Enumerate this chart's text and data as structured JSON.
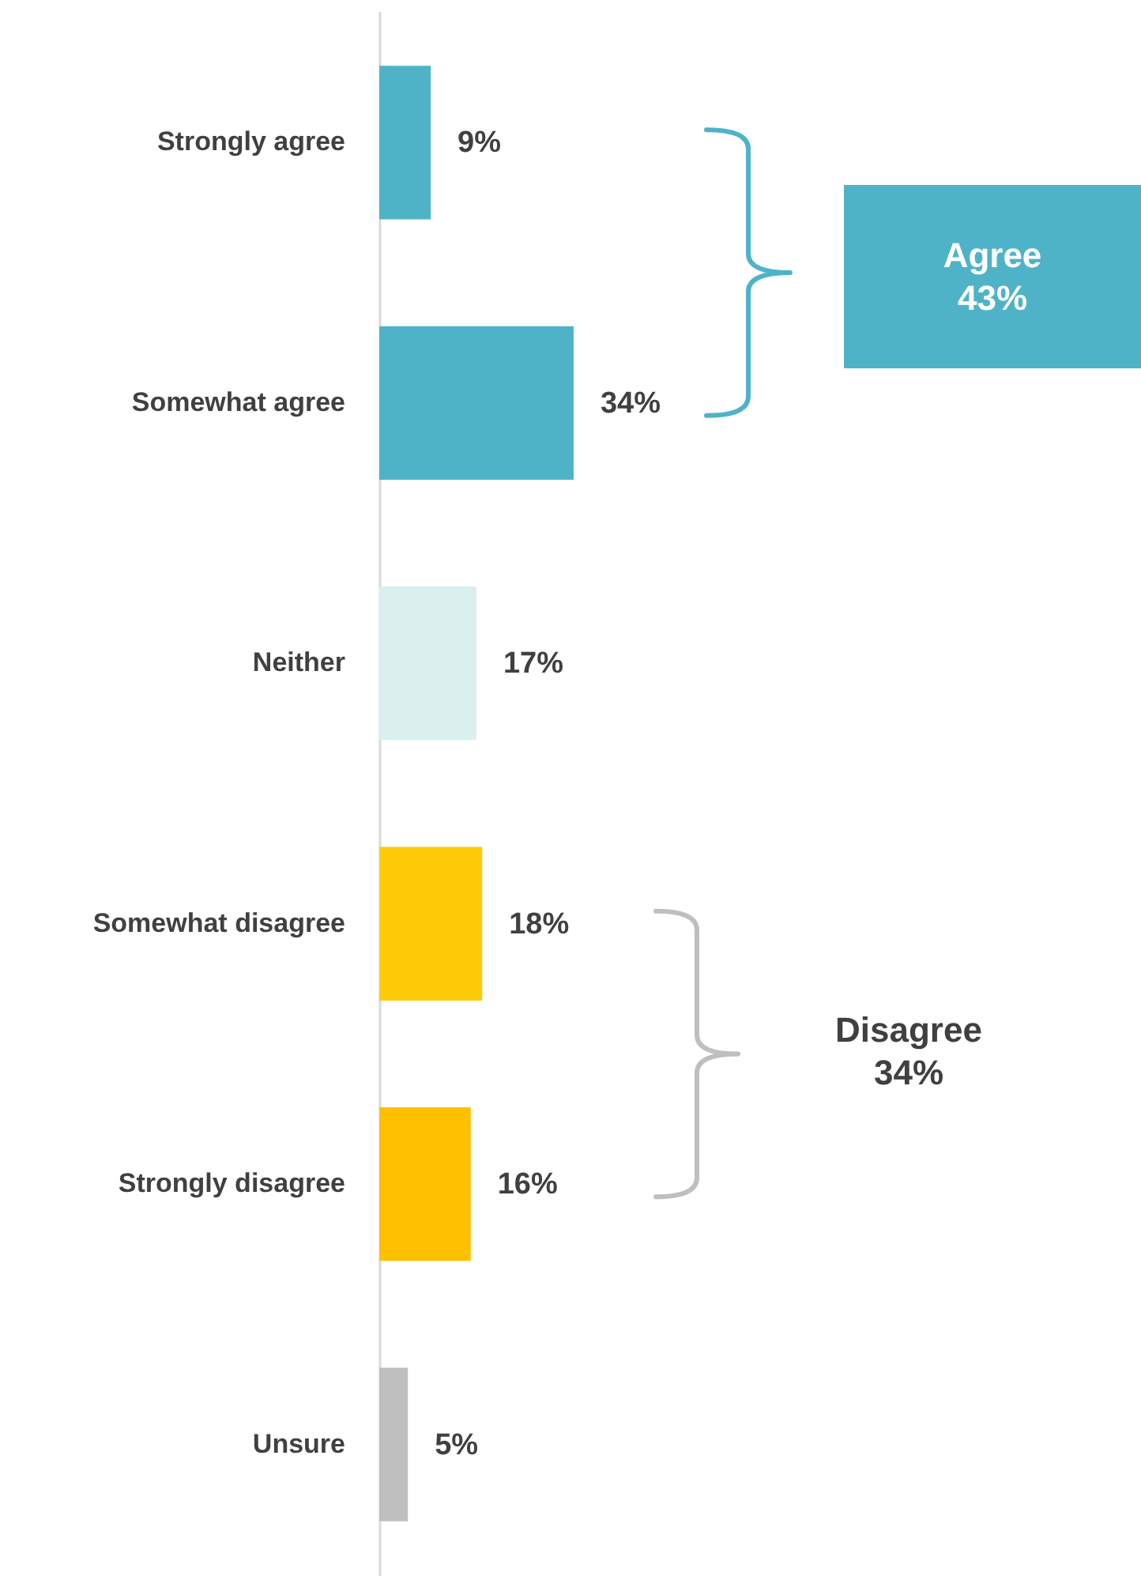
{
  "chart_data": {
    "type": "bar",
    "orientation": "horizontal",
    "categories": [
      "Strongly agree",
      "Somewhat agree",
      "Neither",
      "Somewhat disagree",
      "Strongly disagree",
      "Unsure"
    ],
    "values": [
      9,
      34,
      17,
      18,
      16,
      5
    ],
    "colors": [
      "#4fb3c8",
      "#4fb3c8",
      "#daf0ef",
      "#ffcb08",
      "#ffc000",
      "#bfbfbf"
    ],
    "value_labels": [
      "9%",
      "34%",
      "17%",
      "18%",
      "16%",
      "5%"
    ],
    "annotations": [
      "Agree\n43%",
      "Disagree\n34%"
    ]
  }
}
